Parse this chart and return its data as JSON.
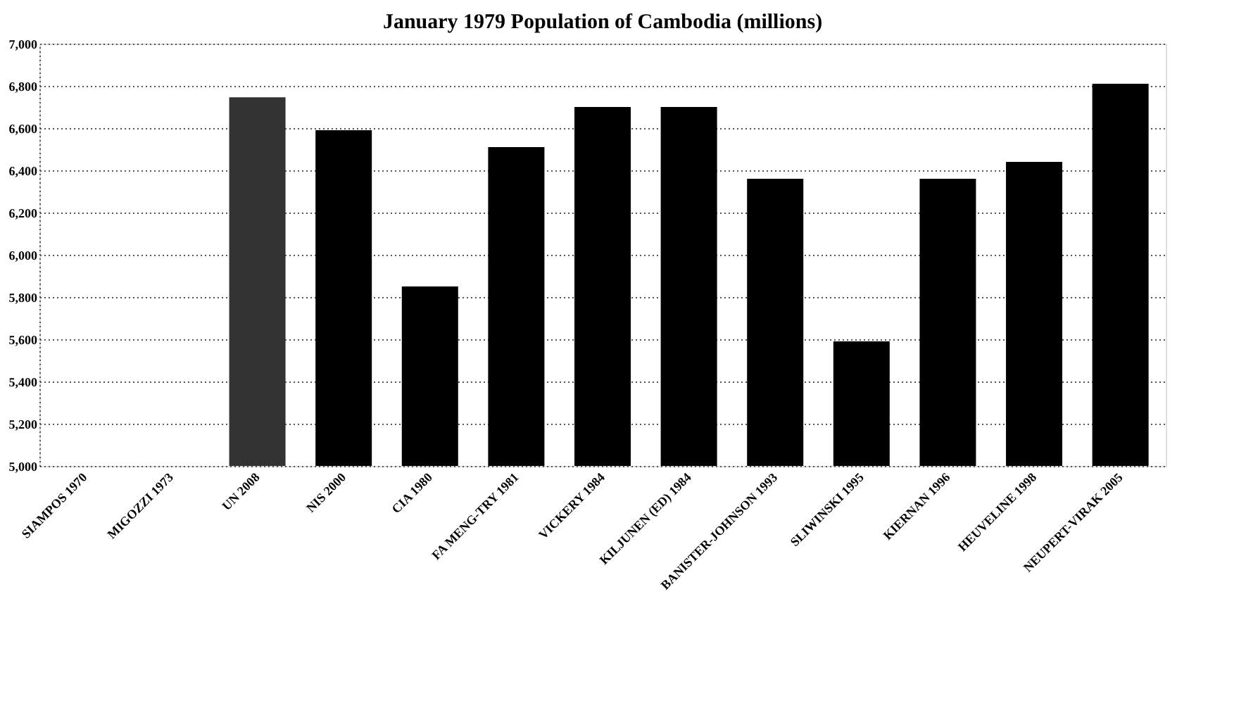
{
  "chart_data": {
    "type": "bar",
    "title": "January 1979 Population of Cambodia (millions)",
    "categories": [
      "SIAMPOS 1970",
      "MIGOZZI 1973",
      "UN 2008",
      "NIS 2000",
      "CIA 1980",
      "FA MENG-TRY 1981",
      "VICKERY 1984",
      "KILJUNEN (ED) 1984",
      "BANISTER-JOHNSON 1993",
      "SLIWINSKI 1995",
      "KIERNAN 1996",
      "HEUVELINE 1998",
      "NEUPERT-VIRAK 2005"
    ],
    "values": [
      null,
      null,
      6746,
      6590,
      5850,
      6510,
      6700,
      6700,
      6360,
      5590,
      6360,
      6440,
      6810
    ],
    "colors": [
      "#000000",
      "#000000",
      "#333333",
      "#000000",
      "#000000",
      "#000000",
      "#000000",
      "#000000",
      "#000000",
      "#000000",
      "#000000",
      "#000000",
      "#000000"
    ],
    "ylim": [
      5000,
      7000
    ],
    "yticks": [
      {
        "value": 5000,
        "label": "5,000"
      },
      {
        "value": 5200,
        "label": "5,200"
      },
      {
        "value": 5400,
        "label": "5,400"
      },
      {
        "value": 5600,
        "label": "5,600"
      },
      {
        "value": 5800,
        "label": "5,800"
      },
      {
        "value": 6000,
        "label": "6,000"
      },
      {
        "value": 6200,
        "label": "6,200"
      },
      {
        "value": 6400,
        "label": "6,400"
      },
      {
        "value": 6600,
        "label": "6,600"
      },
      {
        "value": 6800,
        "label": "6,800"
      },
      {
        "value": 7000,
        "label": "7,000"
      }
    ],
    "grid": "y"
  }
}
